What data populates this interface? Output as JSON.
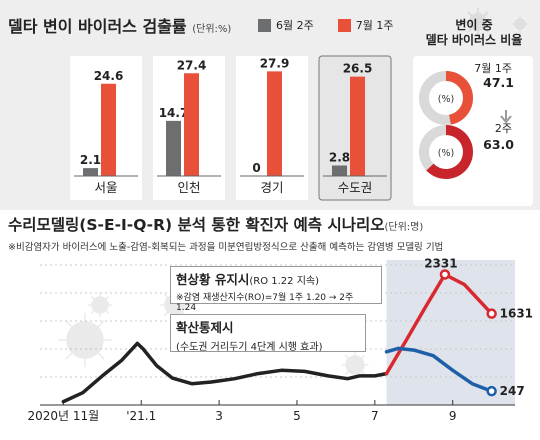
{
  "bar_section": {
    "title": "델타 변이 바이러스 검출률",
    "unit": "(단위:%)",
    "legend": [
      {
        "label": "6월 2주",
        "color": "#6d6e70"
      },
      {
        "label": "7월 1주",
        "color": "#e8503a"
      }
    ]
  },
  "donut_section": {
    "title_line1": "변이 중",
    "title_line2": "델타 바이러스 비율",
    "donuts": [
      {
        "period": "7월 1주",
        "value_label": "47.1",
        "center_label": "(%)",
        "share": 47.1,
        "color": "#e8503a"
      },
      {
        "period": "2주",
        "value_label": "63.0",
        "center_label": "(%)",
        "share": 63.0,
        "color": "#c8242b"
      }
    ]
  },
  "line_section": {
    "title": "수리모델링(S-E-I-Q-R) 분석 통한 확진자 예측 시나리오",
    "unit": "(단위:명)",
    "subtitle": "※비감염자가 바이러스에 노출-감염-회복되는 과정을 미분연립방정식으로 산출해 예측하는 감염병 모델링 기법",
    "annotation1_title": "현상황 유지시",
    "annotation1_title_small": "(RO 1.22 지속)",
    "annotation1_detail": "※감염 재생산지수(RO)=7월 1주 1.20 → 2주 1.24",
    "annotation2_title": "확산통제시",
    "annotation2_detail": "(수도권 거리두기 4단계 시행 효과)"
  },
  "chart_data": [
    {
      "type": "bar",
      "title": "델타 변이 바이러스 검출률",
      "unit": "(단위:%)",
      "categories": [
        "서울",
        "인천",
        "경기",
        "수도권"
      ],
      "highlighted_category": "수도권",
      "series": [
        {
          "name": "6월 2주",
          "color": "#6d6e70",
          "values": [
            2.1,
            14.7,
            0,
            2.8
          ],
          "labels": [
            "2.1",
            "14.7",
            "0",
            "2.8"
          ]
        },
        {
          "name": "7월 1주",
          "color": "#e8503a",
          "values": [
            24.6,
            27.4,
            27.9,
            26.5
          ],
          "labels": [
            "24.6",
            "27.4",
            "27.9",
            "26.5"
          ]
        }
      ],
      "ylim": [
        0,
        32
      ]
    },
    {
      "type": "line",
      "title": "수리모델링(S-E-I-Q-R) 분석 통한 확진자 예측 시나리오",
      "unit": "(단위:명)",
      "x_tick_labels": [
        "2020년 11월",
        "'21.1",
        "3",
        "5",
        "7",
        "9"
      ],
      "x_ticks_month_index": [
        0,
        2,
        4,
        6,
        8,
        10
      ],
      "forecast_start_month_index": 8.3,
      "ylim": [
        0,
        2500
      ],
      "grid": true,
      "series": [
        {
          "name": "actual",
          "color": "#222222",
          "points": [
            [
              0,
              60
            ],
            [
              0.5,
              220
            ],
            [
              1.0,
              520
            ],
            [
              1.5,
              800
            ],
            [
              1.9,
              1100
            ],
            [
              2.05,
              1000
            ],
            [
              2.4,
              700
            ],
            [
              2.8,
              480
            ],
            [
              3.3,
              380
            ],
            [
              3.8,
              410
            ],
            [
              4.4,
              470
            ],
            [
              5.0,
              560
            ],
            [
              5.6,
              620
            ],
            [
              6.2,
              600
            ],
            [
              6.8,
              520
            ],
            [
              7.3,
              470
            ],
            [
              7.6,
              520
            ],
            [
              8.0,
              520
            ],
            [
              8.3,
              560
            ]
          ]
        },
        {
          "name": "현상황 유지시",
          "color": "#d9282f",
          "end_label": "1631",
          "peak_label": "2331",
          "points": [
            [
              8.3,
              560
            ],
            [
              8.8,
              1150
            ],
            [
              9.3,
              1750
            ],
            [
              9.8,
              2331
            ],
            [
              10.3,
              2150
            ],
            [
              11.0,
              1631
            ]
          ]
        },
        {
          "name": "확산통제시",
          "color": "#1f5fa8",
          "end_label": "247",
          "points": [
            [
              8.3,
              950
            ],
            [
              8.6,
              1010
            ],
            [
              9.0,
              980
            ],
            [
              9.5,
              880
            ],
            [
              10.0,
              620
            ],
            [
              10.5,
              380
            ],
            [
              11.0,
              247
            ]
          ]
        }
      ]
    }
  ]
}
